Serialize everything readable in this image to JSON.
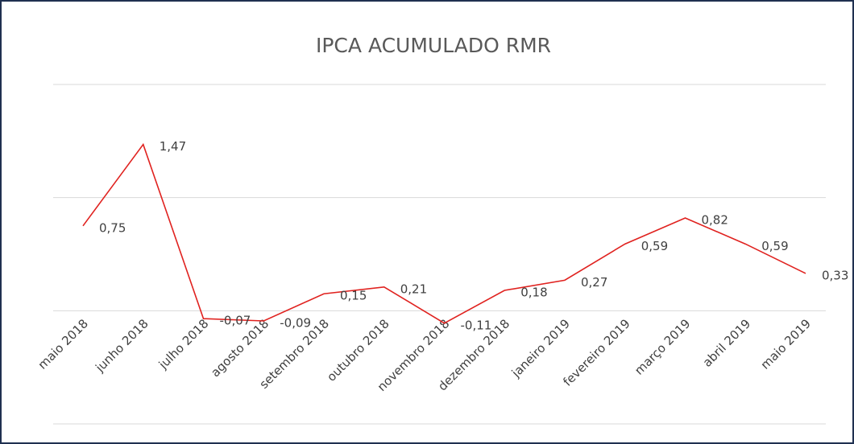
{
  "chart_data": {
    "type": "line",
    "title": "IPCA ACUMULADO RMR",
    "categories": [
      "maio 2018",
      "junho 2018",
      "julho 2018",
      "agosto 2018",
      "setembro 2018",
      "outubro 2018",
      "novembro 2018",
      "dezembro 2018",
      "janeiro 2019",
      "fevereiro 2019",
      "março 2019",
      "abril 2019",
      "maio 2019"
    ],
    "series": [
      {
        "color": "#e0221f",
        "values": [
          0.75,
          1.47,
          -0.07,
          -0.09,
          0.15,
          0.21,
          -0.11,
          0.18,
          0.27,
          0.59,
          0.82,
          0.59,
          0.33
        ],
        "value_labels": [
          "0,75",
          "1,47",
          "-0,07",
          "-0,09",
          "0,15",
          "0,21",
          "-0,11",
          "0,18",
          "0,27",
          "0,59",
          "0,82",
          "0,59",
          "0,33"
        ]
      }
    ],
    "ylim": [
      -1,
      2
    ],
    "yticks": [
      -1,
      0,
      1,
      2
    ],
    "grid": true
  }
}
